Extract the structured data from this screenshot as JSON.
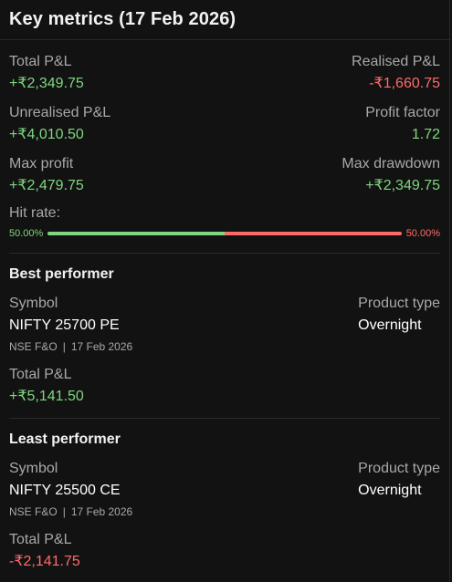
{
  "title": "Key metrics (17 Feb 2026)",
  "metrics": {
    "total_pnl_label": "Total P&L",
    "total_pnl_value": "+₹2,349.75",
    "realised_pnl_label": "Realised P&L",
    "realised_pnl_value": "-₹1,660.75",
    "unrealised_pnl_label": "Unrealised P&L",
    "unrealised_pnl_value": "+₹4,010.50",
    "profit_factor_label": "Profit factor",
    "profit_factor_value": "1.72",
    "max_profit_label": "Max profit",
    "max_profit_value": "+₹2,479.75",
    "max_drawdown_label": "Max drawdown",
    "max_drawdown_value": "+₹2,349.75"
  },
  "hit_rate": {
    "label": "Hit rate:",
    "win_pct_text": "50.00%",
    "loss_pct_text": "50.00%",
    "win_fraction": 0.5
  },
  "best": {
    "title": "Best performer",
    "symbol_label": "Symbol",
    "symbol": "NIFTY 25700 PE",
    "product_type_label": "Product type",
    "product_type": "Overnight",
    "exchange": "NSE F&O",
    "separator": "|",
    "date": "17 Feb 2026",
    "pnl_label": "Total P&L",
    "pnl_value": "+₹5,141.50"
  },
  "least": {
    "title": "Least performer",
    "symbol_label": "Symbol",
    "symbol": "NIFTY 25500 CE",
    "product_type_label": "Product type",
    "product_type": "Overnight",
    "exchange": "NSE F&O",
    "separator": "|",
    "date": "17 Feb 2026",
    "pnl_label": "Total P&L",
    "pnl_value": "-₹2,141.75"
  },
  "colors": {
    "positive": "#7fd67f",
    "negative": "#ff6b6b",
    "background": "#121212"
  }
}
